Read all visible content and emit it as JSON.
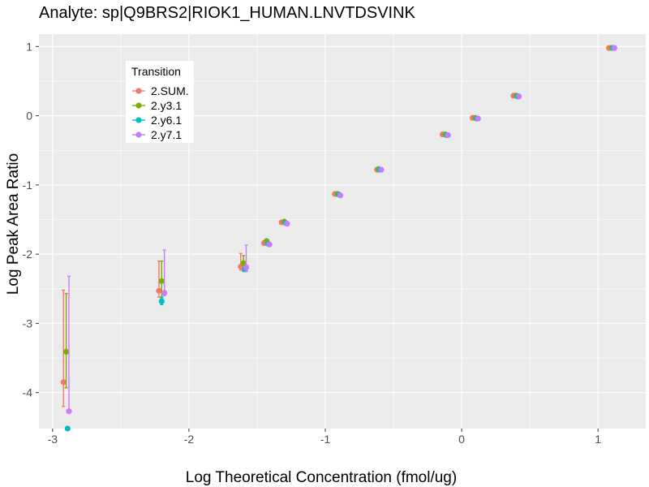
{
  "chart_data": {
    "type": "scatter",
    "title": "Analyte: sp|Q9BRS2|RIOK1_HUMAN.LNVTDSVINK",
    "xlabel": "Log Theoretical Concentration (fmol/ug)",
    "ylabel": "Log Peak Area Ratio",
    "xlim": [
      -3.1,
      1.35
    ],
    "ylim": [
      -4.52,
      1.18
    ],
    "x_ticks": [
      -3,
      -2,
      -1,
      0,
      1
    ],
    "x_tick_labels": [
      "-3",
      "-2",
      "-1",
      "0",
      "1"
    ],
    "y_ticks": [
      -4,
      -3,
      -2,
      -1,
      0,
      1
    ],
    "y_tick_labels": [
      "-4",
      "-3",
      "-2",
      "-1",
      "0",
      "1"
    ],
    "grid": true,
    "legend": {
      "title": "Transition",
      "position": "top-left"
    },
    "series": [
      {
        "name": "2.SUM.",
        "color": "#F8766D",
        "points": [
          {
            "x": -2.92,
            "y": -3.85,
            "ymin": -4.2,
            "ymax": -2.52
          },
          {
            "x": -2.22,
            "y": -2.53,
            "ymin": -2.62,
            "ymax": -2.1
          },
          {
            "x": -1.62,
            "y": -2.18,
            "ymin": -2.23,
            "ymax": -1.99
          },
          {
            "x": -1.45,
            "y": -1.84
          },
          {
            "x": -1.32,
            "y": -1.54
          },
          {
            "x": -0.93,
            "y": -1.13
          },
          {
            "x": -0.62,
            "y": -0.78
          },
          {
            "x": -0.14,
            "y": -0.27
          },
          {
            "x": 0.08,
            "y": -0.03
          },
          {
            "x": 0.38,
            "y": 0.29
          },
          {
            "x": 1.08,
            "y": 0.98
          }
        ]
      },
      {
        "name": "2.y3.1",
        "color": "#7CAE00",
        "points": [
          {
            "x": -2.9,
            "y": -3.41,
            "ymin": -3.93,
            "ymax": -2.57
          },
          {
            "x": -2.2,
            "y": -2.39,
            "ymin": -2.62,
            "ymax": -2.1
          },
          {
            "x": -1.6,
            "y": -2.13,
            "ymin": -2.25,
            "ymax": -2.02
          },
          {
            "x": -1.43,
            "y": -1.81
          },
          {
            "x": -1.3,
            "y": -1.53
          },
          {
            "x": -0.91,
            "y": -1.13
          },
          {
            "x": -0.61,
            "y": -0.77
          },
          {
            "x": -0.12,
            "y": -0.27
          },
          {
            "x": 0.1,
            "y": -0.03
          },
          {
            "x": 0.4,
            "y": 0.29
          },
          {
            "x": 1.1,
            "y": 0.98
          }
        ]
      },
      {
        "name": "2.y6.1",
        "color": "#00BFC4",
        "points": [
          {
            "x": -2.89,
            "y": -4.52
          },
          {
            "x": -2.2,
            "y": -2.68,
            "ymin": -2.73,
            "ymax": -2.63
          },
          {
            "x": -1.59,
            "y": -2.22
          },
          {
            "x": -1.42,
            "y": -1.85
          },
          {
            "x": -1.29,
            "y": -1.55
          },
          {
            "x": -0.9,
            "y": -1.14
          },
          {
            "x": -0.6,
            "y": -0.78
          },
          {
            "x": -0.11,
            "y": -0.28
          },
          {
            "x": 0.11,
            "y": -0.04
          },
          {
            "x": 0.41,
            "y": 0.28
          },
          {
            "x": 1.11,
            "y": 0.98
          }
        ]
      },
      {
        "name": "2.y7.1",
        "color": "#C77CFF",
        "points": [
          {
            "x": -2.88,
            "y": -4.27,
            "ymin": -4.27,
            "ymax": -2.32
          },
          {
            "x": -2.18,
            "y": -2.56,
            "ymin": -2.6,
            "ymax": -1.94
          },
          {
            "x": -1.58,
            "y": -2.19,
            "ymin": -2.25,
            "ymax": -1.87
          },
          {
            "x": -1.41,
            "y": -1.86
          },
          {
            "x": -1.28,
            "y": -1.56
          },
          {
            "x": -0.89,
            "y": -1.15
          },
          {
            "x": -0.59,
            "y": -0.78
          },
          {
            "x": -0.1,
            "y": -0.28
          },
          {
            "x": 0.12,
            "y": -0.04
          },
          {
            "x": 0.42,
            "y": 0.28
          },
          {
            "x": 1.12,
            "y": 0.98
          }
        ]
      }
    ]
  }
}
